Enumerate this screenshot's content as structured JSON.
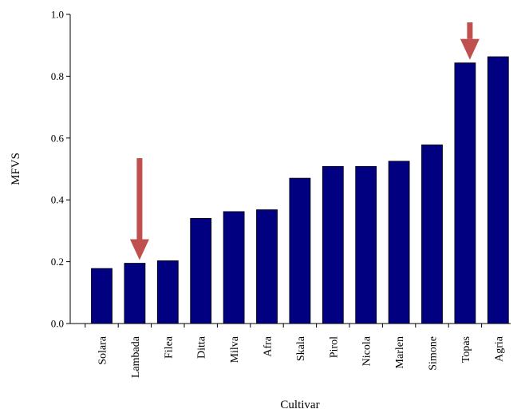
{
  "chart_data": {
    "type": "bar",
    "title": "",
    "xlabel": "Cultivar",
    "ylabel": "MFVS",
    "ylim": [
      0,
      1.0
    ],
    "yticks": [
      "0.0",
      "0.2",
      "0.4",
      "0.6",
      "0.8",
      "1.0"
    ],
    "grid": false,
    "categories": [
      "Solara",
      "Lambada",
      "Filea",
      "Ditta",
      "Milva",
      "Afra",
      "Skala",
      "Pirol",
      "Nicola",
      "Marlen",
      "Simone",
      "Topas",
      "Agria"
    ],
    "values": [
      0.178,
      0.195,
      0.203,
      0.34,
      0.362,
      0.368,
      0.47,
      0.508,
      0.508,
      0.525,
      0.578,
      0.843,
      0.863
    ],
    "bar_color": "#000080",
    "arrows": {
      "color": "#c0504d",
      "highlighted": [
        "Lambada",
        "Topas"
      ]
    }
  }
}
